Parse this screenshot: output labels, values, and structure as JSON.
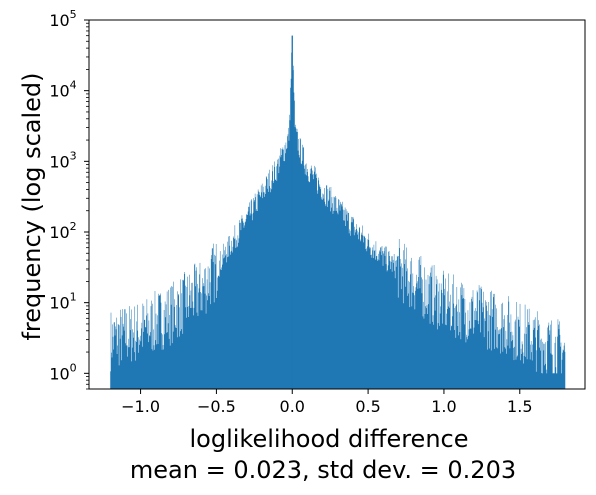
{
  "chart_data": {
    "type": "bar",
    "subtype": "histogram",
    "xlabel": "loglikelihood difference",
    "subtitle": "mean = 0.023, std dev. = 0.203",
    "ylabel": "frequency (log scaled)",
    "xlim": [
      -1.34,
      1.93
    ],
    "ylim": [
      0.6,
      100000
    ],
    "yscale": "log",
    "grid": false,
    "bar_color": "#1f77b4",
    "x_ticks": [
      "−1.0",
      "−0.5",
      "0.0",
      "0.5",
      "1.0",
      "1.5"
    ],
    "x_tick_values": [
      -1.0,
      -0.5,
      0.0,
      0.5,
      1.0,
      1.5
    ],
    "y_ticks": [
      {
        "value": 1,
        "base": "10",
        "exp": "0"
      },
      {
        "value": 10,
        "base": "10",
        "exp": "1"
      },
      {
        "value": 100,
        "base": "10",
        "exp": "2"
      },
      {
        "value": 1000,
        "base": "10",
        "exp": "3"
      },
      {
        "value": 10000,
        "base": "10",
        "exp": "4"
      },
      {
        "value": 100000,
        "base": "10",
        "exp": "5"
      }
    ],
    "data_range": [
      -1.2,
      1.8
    ],
    "mean": 0.023,
    "std_dev": 0.203,
    "peak": {
      "x": 0.0,
      "frequency": 60000
    },
    "envelope": {
      "x": [
        -1.2,
        -1.0,
        -0.8,
        -0.6,
        -0.5,
        -0.4,
        -0.3,
        -0.2,
        -0.1,
        -0.05,
        -0.02,
        0.0,
        0.02,
        0.05,
        0.1,
        0.2,
        0.3,
        0.4,
        0.5,
        0.6,
        0.8,
        1.0,
        1.2,
        1.4,
        1.6,
        1.8
      ],
      "frequency": [
        3,
        4,
        7,
        15,
        30,
        70,
        150,
        350,
        800,
        1500,
        2500,
        60000,
        2500,
        1500,
        800,
        400,
        220,
        120,
        70,
        45,
        20,
        10,
        7,
        5,
        3,
        2
      ]
    }
  }
}
